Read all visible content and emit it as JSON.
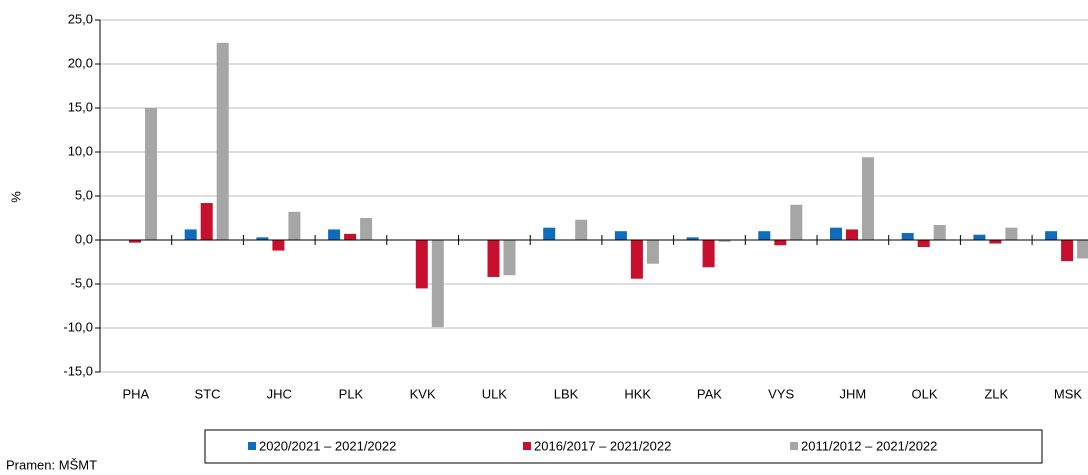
{
  "chart_data": {
    "type": "bar",
    "y_label": "%",
    "source": "Pramen: MŠMT",
    "categories": [
      "PHA",
      "STC",
      "JHC",
      "PLK",
      "KVK",
      "ULK",
      "LBK",
      "HKK",
      "PAK",
      "VYS",
      "JHM",
      "OLK",
      "ZLK",
      "MSK"
    ],
    "series": [
      {
        "name": "2020/2021 – 2021/2022",
        "color": "#0f6cbd",
        "values": [
          0.0,
          1.2,
          0.3,
          1.2,
          0.0,
          0.0,
          1.4,
          1.0,
          0.3,
          1.0,
          1.4,
          0.8,
          0.6,
          1.0
        ]
      },
      {
        "name": "2016/2017 – 2021/2022",
        "color": "#c8102e",
        "values": [
          -0.3,
          4.2,
          -1.2,
          0.7,
          -5.5,
          -4.2,
          0.0,
          -4.4,
          -3.1,
          -0.6,
          1.2,
          -0.8,
          -0.4,
          -2.4
        ]
      },
      {
        "name": "2011/2012 – 2021/2022",
        "color": "#a6a6a6",
        "values": [
          15.0,
          22.4,
          3.2,
          2.5,
          -9.9,
          -4.0,
          2.3,
          -2.7,
          -0.2,
          4.0,
          9.4,
          1.7,
          1.4,
          -2.1
        ]
      }
    ],
    "ylim": [
      -15,
      25
    ],
    "yticks": [
      {
        "value": -15,
        "label": "-15,0"
      },
      {
        "value": -10,
        "label": "-10,0"
      },
      {
        "value": -5,
        "label": "-5,0"
      },
      {
        "value": 0,
        "label": "0,0"
      },
      {
        "value": 5,
        "label": "5,0"
      },
      {
        "value": 10,
        "label": "10,0"
      },
      {
        "value": 15,
        "label": "15,0"
      },
      {
        "value": 20,
        "label": "20,0"
      },
      {
        "value": 25,
        "label": "25,0"
      }
    ],
    "grid": true
  }
}
